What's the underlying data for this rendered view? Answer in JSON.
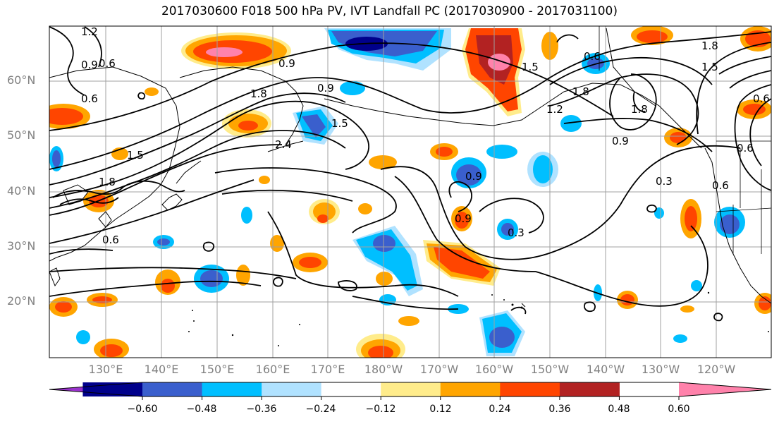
{
  "title": "2017030600 F018 500 hPa PV, IVT Landfall PC (2017030900 - 2017031100)",
  "lat_labels": [
    "60°N",
    "50°N",
    "40°N",
    "30°N",
    "20°N"
  ],
  "lon_labels": [
    "130°E",
    "140°E",
    "150°E",
    "160°E",
    "170°E",
    "180°W",
    "170°W",
    "160°W",
    "150°W",
    "140°W",
    "130°W",
    "120°W"
  ],
  "colorbar": {
    "ticks": [
      "−0.60",
      "−0.48",
      "−0.36",
      "−0.24",
      "−0.12",
      "0.12",
      "0.24",
      "0.36",
      "0.48",
      "0.60"
    ],
    "colors": [
      "#9a32cd",
      "#00008b",
      "#3a5fcd",
      "#00bfff",
      "#b0e2ff",
      "#ffffff",
      "#ffec8b",
      "#ffa500",
      "#ff4500",
      "#b22222",
      "#ff82ab"
    ]
  },
  "contour_labels": [
    "1.2",
    "0.9",
    "0.6",
    "0.6",
    "1.8",
    "1.5",
    "0.9",
    "1.5",
    "0.9",
    "0.6",
    "1.8",
    "2.4",
    "1.2",
    "1.5",
    "0.9",
    "0.3",
    "0.6",
    "1.8",
    "0.6",
    "1.5",
    "1.8",
    "0.6",
    "0.3",
    "1.8",
    "0.9",
    "0.6",
    "0.9"
  ]
}
